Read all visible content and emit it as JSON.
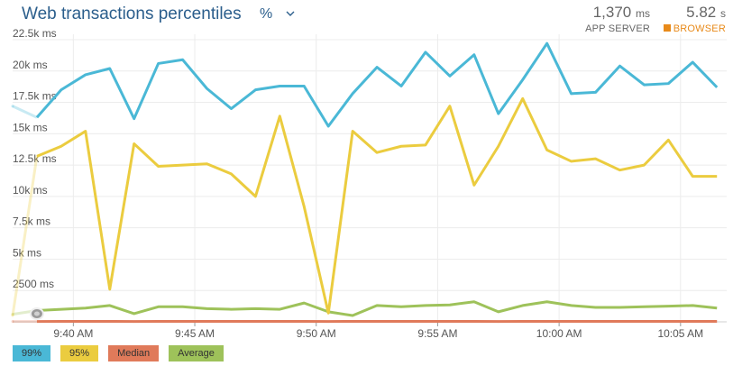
{
  "header": {
    "title": "Web transactions percentiles",
    "unit_selector": "%"
  },
  "stats": {
    "app_server": {
      "value": "1,370",
      "unit": "ms",
      "label": "APP SERVER"
    },
    "browser": {
      "value": "5.82",
      "unit": "s",
      "label": "BROWSER"
    }
  },
  "colors": {
    "p99": "#4ab8d6",
    "p95": "#ebcc3f",
    "median": "#e07a5a",
    "average": "#9ec25a",
    "grid": "#ececec",
    "axis_text": "#555555"
  },
  "legend": [
    {
      "label": "99%",
      "color": "#4ab8d6"
    },
    {
      "label": "95%",
      "color": "#ebcc3f"
    },
    {
      "label": "Median",
      "color": "#e07a5a"
    },
    {
      "label": "Average",
      "color": "#9ec25a"
    }
  ],
  "chart_data": {
    "type": "line",
    "ylabel": "",
    "xlabel": "",
    "ylim": [
      0,
      22500
    ],
    "y_ticks": [
      {
        "value": 22500,
        "label": "22.5k ms"
      },
      {
        "value": 20000,
        "label": "20k ms"
      },
      {
        "value": 17500,
        "label": "17.5k ms"
      },
      {
        "value": 15000,
        "label": "15k ms"
      },
      {
        "value": 12500,
        "label": "12.5k ms"
      },
      {
        "value": 10000,
        "label": "10k ms"
      },
      {
        "value": 7500,
        "label": "7.5k ms"
      },
      {
        "value": 5000,
        "label": "5k ms"
      },
      {
        "value": 2500,
        "label": "2500 ms"
      }
    ],
    "x_ticks": [
      {
        "minute": 2,
        "label": "9:40 AM"
      },
      {
        "minute": 7,
        "label": "9:45 AM"
      },
      {
        "minute": 12,
        "label": "9:50 AM"
      },
      {
        "minute": 17,
        "label": "9:55 AM"
      },
      {
        "minute": 22,
        "label": "10:00 AM"
      },
      {
        "minute": 27,
        "label": "10:05 AM"
      }
    ],
    "xlim": [
      -0.5,
      28.9
    ],
    "grid": true,
    "legend_position": "bottom-left",
    "faded_until_minute": 0,
    "selection_marker_minute": 0.5,
    "x": [
      -0.5,
      0.5,
      1.5,
      2.5,
      3.5,
      4.5,
      5.5,
      6.5,
      7.5,
      8.5,
      9.5,
      10.5,
      11.5,
      12.5,
      13.5,
      14.5,
      15.5,
      16.5,
      17.5,
      18.5,
      19.5,
      20.5,
      21.5,
      22.5,
      23.5,
      24.5,
      25.5,
      26.5,
      27.5,
      28.5
    ],
    "series": [
      {
        "name": "99%",
        "color": "#4ab8d6",
        "values": [
          17200,
          16300,
          18500,
          19700,
          20200,
          16200,
          20600,
          20900,
          18600,
          17000,
          18500,
          18800,
          18800,
          15600,
          18200,
          20300,
          18800,
          21500,
          19600,
          21300,
          16600,
          19300,
          22200,
          18200,
          18300,
          20400,
          18900,
          19000,
          20700,
          18700
        ]
      },
      {
        "name": "95%",
        "color": "#ebcc3f",
        "values": [
          500,
          13200,
          14000,
          15200,
          2600,
          14200,
          12400,
          12500,
          12600,
          11800,
          10000,
          16400,
          9200,
          700,
          15200,
          13500,
          14000,
          14100,
          17200,
          10900,
          14000,
          17800,
          13700,
          12800,
          13000,
          12100,
          12500,
          14500,
          11600,
          11600
        ]
      },
      {
        "name": "Median",
        "color": "#e07a5a",
        "values": [
          30,
          30,
          40,
          40,
          40,
          30,
          40,
          40,
          40,
          40,
          40,
          40,
          40,
          30,
          40,
          40,
          40,
          40,
          40,
          40,
          30,
          40,
          40,
          40,
          40,
          40,
          40,
          40,
          40,
          40
        ]
      },
      {
        "name": "Average",
        "color": "#9ec25a",
        "values": [
          600,
          900,
          1000,
          1100,
          1300,
          650,
          1200,
          1200,
          1050,
          1000,
          1050,
          1000,
          1500,
          800,
          500,
          1300,
          1200,
          1300,
          1350,
          1600,
          800,
          1300,
          1600,
          1300,
          1150,
          1150,
          1200,
          1250,
          1300,
          1100
        ]
      }
    ]
  }
}
